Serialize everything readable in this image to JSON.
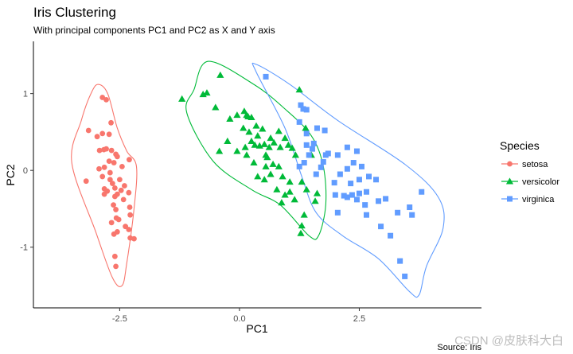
{
  "chart_data": {
    "type": "scatter",
    "title": "Iris Clustering",
    "subtitle": "With principal components PC1 and PC2 as X and Y axis",
    "xlabel": "PC1",
    "ylabel": "PC2",
    "caption": "Source: Iris",
    "watermark": "CSDN @皮肤科大白",
    "xlim": [
      -4.3,
      5.05
    ],
    "ylim": [
      -1.79,
      1.68
    ],
    "xticks": [
      {
        "value": -2.5,
        "label": "-2.5"
      },
      {
        "value": 0,
        "label": "0.0"
      },
      {
        "value": 2.5,
        "label": "2.5"
      }
    ],
    "yticks": [
      {
        "value": 1,
        "label": "1"
      },
      {
        "value": 0,
        "label": "0"
      },
      {
        "value": -1,
        "label": "-1"
      }
    ],
    "grid": false,
    "legend": {
      "title": "Species",
      "position": "right"
    },
    "series": [
      {
        "name": "setosa",
        "color": "#F8766D",
        "shape": "circle",
        "hull": [
          [
            -2.95,
            1.12
          ],
          [
            -2.75,
            1.0
          ],
          [
            -2.55,
            0.55
          ],
          [
            -2.35,
            0.25
          ],
          [
            -2.15,
            0.05
          ],
          [
            -2.2,
            -0.5
          ],
          [
            -2.35,
            -1.2
          ],
          [
            -2.45,
            -1.5
          ],
          [
            -2.65,
            -1.4
          ],
          [
            -3.0,
            -0.8
          ],
          [
            -3.5,
            0.1
          ],
          [
            -3.3,
            0.65
          ],
          [
            -3.1,
            1.0
          ]
        ],
        "points": [
          [
            -2.86,
            0.95
          ],
          [
            -2.78,
            0.92
          ],
          [
            -2.68,
            0.62
          ],
          [
            -2.72,
            0.47
          ],
          [
            -2.86,
            0.48
          ],
          [
            -3.15,
            0.52
          ],
          [
            -2.97,
            0.44
          ],
          [
            -2.83,
            0.27
          ],
          [
            -2.92,
            0.26
          ],
          [
            -2.78,
            0.28
          ],
          [
            -2.67,
            0.26
          ],
          [
            -2.58,
            0.21
          ],
          [
            -2.55,
            0.18
          ],
          [
            -2.72,
            0.12
          ],
          [
            -2.62,
            0.1
          ],
          [
            -2.82,
            0.04
          ],
          [
            -2.93,
            0.02
          ],
          [
            -2.7,
            -0.03
          ],
          [
            -2.45,
            0.05
          ],
          [
            -2.3,
            0.14
          ],
          [
            -2.86,
            -0.08
          ],
          [
            -2.7,
            -0.12
          ],
          [
            -2.5,
            -0.12
          ],
          [
            -2.65,
            -0.17
          ],
          [
            -3.2,
            -0.14
          ],
          [
            -2.82,
            -0.24
          ],
          [
            -2.6,
            -0.23
          ],
          [
            -2.4,
            -0.2
          ],
          [
            -2.76,
            -0.27
          ],
          [
            -2.55,
            -0.31
          ],
          [
            -2.6,
            -0.34
          ],
          [
            -2.82,
            -0.31
          ],
          [
            -2.47,
            -0.26
          ],
          [
            -2.31,
            -0.29
          ],
          [
            -2.63,
            -0.45
          ],
          [
            -2.58,
            -0.51
          ],
          [
            -2.42,
            -0.38
          ],
          [
            -2.29,
            -0.48
          ],
          [
            -2.57,
            -0.62
          ],
          [
            -2.52,
            -0.64
          ],
          [
            -2.67,
            -0.68
          ],
          [
            -2.28,
            -0.58
          ],
          [
            -2.38,
            -0.73
          ],
          [
            -2.31,
            -0.77
          ],
          [
            -2.55,
            -0.8
          ],
          [
            -2.28,
            -0.88
          ],
          [
            -2.2,
            -0.89
          ],
          [
            -2.6,
            -1.12
          ],
          [
            -2.58,
            -1.25
          ],
          [
            -2.62,
            -0.83
          ]
        ]
      },
      {
        "name": "versicolor",
        "color": "#00BA38",
        "shape": "triangle",
        "hull": [
          [
            -0.65,
            1.42
          ],
          [
            0.3,
            1.12
          ],
          [
            0.95,
            0.8
          ],
          [
            1.5,
            0.45
          ],
          [
            1.75,
            0.05
          ],
          [
            1.8,
            -0.45
          ],
          [
            1.65,
            -0.85
          ],
          [
            1.45,
            -0.85
          ],
          [
            0.85,
            -0.45
          ],
          [
            0.25,
            -0.25
          ],
          [
            -0.55,
            0.12
          ],
          [
            -1.1,
            0.75
          ],
          [
            -0.95,
            1.05
          ]
        ],
        "points": [
          [
            -1.2,
            0.93
          ],
          [
            -0.76,
            0.99
          ],
          [
            -0.68,
            1.01
          ],
          [
            -0.5,
            0.82
          ],
          [
            -0.2,
            0.67
          ],
          [
            0.18,
            0.7
          ],
          [
            0.35,
            0.58
          ],
          [
            0.48,
            0.54
          ],
          [
            0.65,
            0.42
          ],
          [
            0.82,
            0.51
          ],
          [
            1.25,
            1.05
          ],
          [
            -0.4,
            1.24
          ],
          [
            -0.05,
            0.72
          ],
          [
            0.1,
            0.77
          ],
          [
            0.15,
            0.72
          ],
          [
            0.25,
            0.69
          ],
          [
            0.08,
            0.55
          ],
          [
            0.2,
            0.5
          ],
          [
            0.38,
            0.45
          ],
          [
            0.52,
            0.34
          ],
          [
            0.62,
            0.3
          ],
          [
            0.72,
            0.36
          ],
          [
            0.85,
            0.3
          ],
          [
            0.95,
            0.42
          ],
          [
            1.02,
            0.33
          ],
          [
            1.1,
            0.29
          ],
          [
            1.17,
            0.2
          ],
          [
            0.25,
            0.38
          ],
          [
            0.32,
            0.33
          ],
          [
            0.42,
            0.32
          ],
          [
            0.55,
            0.2
          ],
          [
            0.7,
            0.08
          ],
          [
            0.82,
            0.05
          ],
          [
            -0.25,
            0.38
          ],
          [
            -0.05,
            0.25
          ],
          [
            0.15,
            0.2
          ],
          [
            0.3,
            0.1
          ],
          [
            0.55,
            0.05
          ],
          [
            0.65,
            -0.05
          ],
          [
            0.9,
            -0.08
          ],
          [
            1.05,
            -0.15
          ],
          [
            0.38,
            -0.08
          ],
          [
            0.52,
            -0.12
          ],
          [
            0.78,
            -0.25
          ],
          [
            0.95,
            -0.32
          ],
          [
            1.05,
            -0.28
          ],
          [
            0.88,
            -0.42
          ],
          [
            1.15,
            -0.38
          ],
          [
            1.3,
            -0.15
          ],
          [
            1.4,
            -0.25
          ],
          [
            1.62,
            -0.3
          ],
          [
            1.58,
            -0.4
          ],
          [
            1.35,
            -0.58
          ],
          [
            1.3,
            -0.72
          ],
          [
            1.28,
            -0.82
          ],
          [
            -0.42,
            0.25
          ],
          [
            0.12,
            0.3
          ],
          [
            0.58,
            0.17
          ],
          [
            1.38,
            0.55
          ],
          [
            1.5,
            0.2
          ]
        ]
      },
      {
        "name": "virginica",
        "color": "#619CFF",
        "shape": "square",
        "hull": [
          [
            0.35,
            1.38
          ],
          [
            1.05,
            1.12
          ],
          [
            2.05,
            0.65
          ],
          [
            3.45,
            0.08
          ],
          [
            4.15,
            -0.35
          ],
          [
            4.25,
            -0.75
          ],
          [
            3.9,
            -1.25
          ],
          [
            3.75,
            -1.62
          ],
          [
            3.55,
            -1.58
          ],
          [
            2.9,
            -1.15
          ],
          [
            2.15,
            -0.85
          ],
          [
            1.6,
            -0.55
          ],
          [
            1.3,
            -0.08
          ],
          [
            0.95,
            0.55
          ],
          [
            0.35,
            1.28
          ]
        ],
        "points": [
          [
            0.55,
            1.22
          ],
          [
            1.33,
            0.8
          ],
          [
            1.28,
            0.85
          ],
          [
            1.4,
            0.79
          ],
          [
            1.62,
            0.55
          ],
          [
            1.78,
            0.52
          ],
          [
            1.25,
            0.63
          ],
          [
            1.55,
            0.35
          ],
          [
            1.8,
            0.2
          ],
          [
            1.4,
            0.33
          ],
          [
            1.75,
            0.11
          ],
          [
            1.52,
            0.28
          ],
          [
            1.6,
            -0.05
          ],
          [
            1.25,
            0.05
          ],
          [
            1.35,
            0.1
          ],
          [
            1.45,
            0.2
          ],
          [
            1.4,
            0.48
          ],
          [
            1.7,
            0.04
          ],
          [
            1.85,
            0.22
          ],
          [
            2.05,
            0.2
          ],
          [
            2.25,
            0.3
          ],
          [
            2.45,
            0.25
          ],
          [
            2.38,
            0.1
          ],
          [
            2.55,
            0.05
          ],
          [
            2.25,
            0.02
          ],
          [
            2.1,
            -0.05
          ],
          [
            1.98,
            -0.16
          ],
          [
            2.32,
            -0.17
          ],
          [
            2.5,
            -0.12
          ],
          [
            2.7,
            -0.08
          ],
          [
            2.0,
            -0.32
          ],
          [
            2.18,
            -0.33
          ],
          [
            2.35,
            -0.32
          ],
          [
            2.5,
            -0.3
          ],
          [
            2.65,
            -0.28
          ],
          [
            2.85,
            -0.12
          ],
          [
            2.05,
            -0.55
          ],
          [
            2.25,
            -0.35
          ],
          [
            2.45,
            -0.38
          ],
          [
            2.62,
            -0.45
          ],
          [
            2.9,
            -0.4
          ],
          [
            3.05,
            -0.37
          ],
          [
            3.3,
            -0.55
          ],
          [
            3.55,
            -0.48
          ],
          [
            3.6,
            -0.58
          ],
          [
            2.65,
            -0.58
          ],
          [
            2.95,
            -0.73
          ],
          [
            3.15,
            -0.85
          ],
          [
            3.35,
            -1.18
          ],
          [
            3.45,
            -1.38
          ],
          [
            3.8,
            -0.28
          ]
        ]
      }
    ]
  }
}
